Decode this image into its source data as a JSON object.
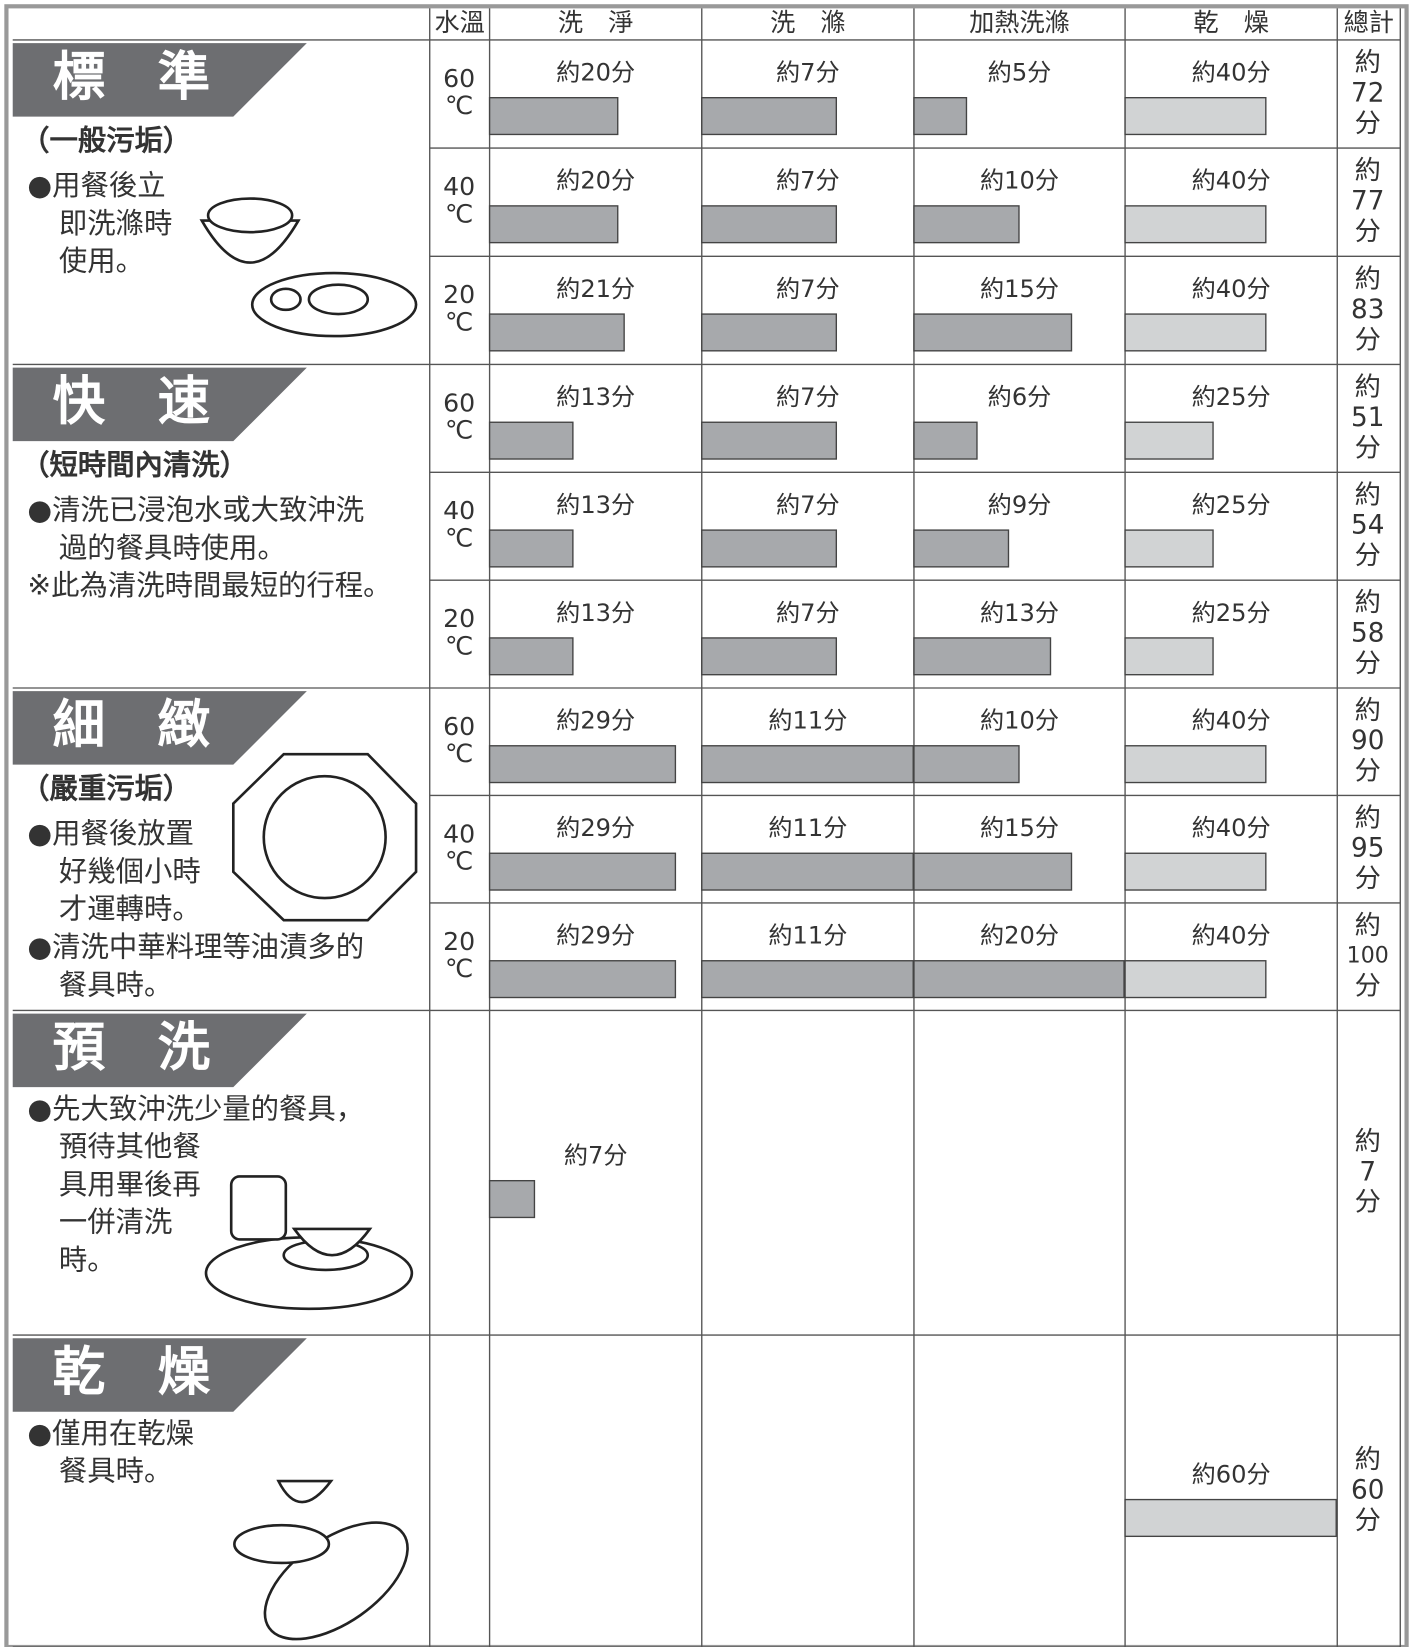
{
  "header": {
    "columns": [
      "水溫",
      "洗　淨",
      "洗　滌",
      "加熱洗滌",
      "乾　燥",
      "總計"
    ]
  },
  "programs": [
    {
      "name": "標　準",
      "subtitle": "（一般污垢）",
      "notes": [
        "●用餐後立",
        "即洗滌時",
        "使用。"
      ],
      "rows": [
        {
          "temp": "60",
          "unit": "℃",
          "cells": [
            {
              "value": 20,
              "label": "約20分"
            },
            {
              "value": 7,
              "label": "約7分"
            },
            {
              "value": 5,
              "label": "約5分"
            },
            {
              "value": 40,
              "label": "約40分"
            }
          ],
          "total": [
            "約",
            "72",
            "分"
          ]
        },
        {
          "temp": "40",
          "unit": "℃",
          "cells": [
            {
              "value": 20,
              "label": "約20分"
            },
            {
              "value": 7,
              "label": "約7分"
            },
            {
              "value": 10,
              "label": "約10分"
            },
            {
              "value": 40,
              "label": "約40分"
            }
          ],
          "total": [
            "約",
            "77",
            "分"
          ]
        },
        {
          "temp": "20",
          "unit": "℃",
          "cells": [
            {
              "value": 21,
              "label": "約21分"
            },
            {
              "value": 7,
              "label": "約7分"
            },
            {
              "value": 15,
              "label": "約15分"
            },
            {
              "value": 40,
              "label": "約40分"
            }
          ],
          "total": [
            "約",
            "83",
            "分"
          ]
        }
      ]
    },
    {
      "name": "快　速",
      "subtitle": "（短時間內清洗）",
      "notes": [
        "●清洗已浸泡水或大致沖洗",
        "過的餐具時使用。",
        "※此為清洗時間最短的行程。"
      ],
      "rows": [
        {
          "temp": "60",
          "unit": "℃",
          "cells": [
            {
              "value": 13,
              "label": "約13分"
            },
            {
              "value": 7,
              "label": "約7分"
            },
            {
              "value": 6,
              "label": "約6分"
            },
            {
              "value": 25,
              "label": "約25分"
            }
          ],
          "total": [
            "約",
            "51",
            "分"
          ]
        },
        {
          "temp": "40",
          "unit": "℃",
          "cells": [
            {
              "value": 13,
              "label": "約13分"
            },
            {
              "value": 7,
              "label": "約7分"
            },
            {
              "value": 9,
              "label": "約9分"
            },
            {
              "value": 25,
              "label": "約25分"
            }
          ],
          "total": [
            "約",
            "54",
            "分"
          ]
        },
        {
          "temp": "20",
          "unit": "℃",
          "cells": [
            {
              "value": 13,
              "label": "約13分"
            },
            {
              "value": 7,
              "label": "約7分"
            },
            {
              "value": 13,
              "label": "約13分"
            },
            {
              "value": 25,
              "label": "約25分"
            }
          ],
          "total": [
            "約",
            "58",
            "分"
          ]
        }
      ]
    },
    {
      "name": "細　緻",
      "subtitle": "（嚴重污垢）",
      "notes": [
        "●用餐後放置",
        "好幾個小時",
        "才運轉時。",
        "●清洗中華料理等油漬多的",
        "餐具時。"
      ],
      "rows": [
        {
          "temp": "60",
          "unit": "℃",
          "cells": [
            {
              "value": 29,
              "label": "約29分"
            },
            {
              "value": 11,
              "label": "約11分"
            },
            {
              "value": 10,
              "label": "約10分"
            },
            {
              "value": 40,
              "label": "約40分"
            }
          ],
          "total": [
            "約",
            "90",
            "分"
          ]
        },
        {
          "temp": "40",
          "unit": "℃",
          "cells": [
            {
              "value": 29,
              "label": "約29分"
            },
            {
              "value": 11,
              "label": "約11分"
            },
            {
              "value": 15,
              "label": "約15分"
            },
            {
              "value": 40,
              "label": "約40分"
            }
          ],
          "total": [
            "約",
            "95",
            "分"
          ]
        },
        {
          "temp": "20",
          "unit": "℃",
          "cells": [
            {
              "value": 29,
              "label": "約29分"
            },
            {
              "value": 11,
              "label": "約11分"
            },
            {
              "value": 20,
              "label": "約20分"
            },
            {
              "value": 40,
              "label": "約40分"
            }
          ],
          "total": [
            "約",
            "100",
            "分"
          ]
        }
      ]
    },
    {
      "name": "預　洗",
      "notes": [
        "●先大致沖洗少量的餐具，",
        "預待其他餐",
        "具用畢後再",
        "一併清洗",
        "時。"
      ],
      "rows": [
        {
          "cells": [
            {
              "value": 7,
              "label": "約7分"
            },
            null,
            null,
            null
          ],
          "total": [
            "約",
            "7",
            "分"
          ]
        }
      ]
    },
    {
      "name": "乾　燥",
      "notes": [
        "●僅用在乾燥",
        "餐具時。"
      ],
      "rows": [
        {
          "cells": [
            null,
            null,
            null,
            {
              "value": 60,
              "label": "約60分"
            }
          ],
          "total": [
            "約",
            "60",
            "分"
          ]
        }
      ]
    }
  ]
}
